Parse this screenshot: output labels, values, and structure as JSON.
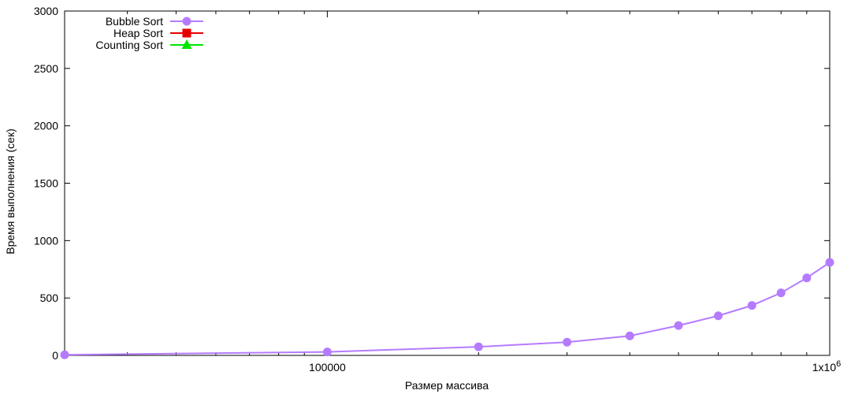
{
  "chart_data": {
    "type": "line",
    "xlabel": "Размер массива",
    "ylabel": "Время выполнения (сек)",
    "xscale": "log",
    "xlim": [
      30000,
      1000000
    ],
    "ylim": [
      0,
      3000
    ],
    "y_ticks": [
      0,
      500,
      1000,
      1500,
      2000,
      2500,
      3000
    ],
    "x_ticks": [
      {
        "value": 100000,
        "label": "100000",
        "sup": ""
      },
      {
        "value": 1000000,
        "label": "1x10",
        "sup": "6"
      }
    ],
    "legend_position": "top-left",
    "x": [
      30000,
      100000,
      200000,
      300000,
      400000,
      500000,
      600000,
      700000,
      800000,
      900000,
      1000000
    ],
    "series": [
      {
        "name": "Bubble Sort",
        "color": "#b57bff",
        "marker": "circle",
        "points": [
          [
            30000,
            5
          ],
          [
            100000,
            30
          ],
          [
            200000,
            75
          ],
          [
            300000,
            115
          ],
          [
            400000,
            170
          ],
          [
            500000,
            260
          ],
          [
            600000,
            345
          ],
          [
            700000,
            435
          ],
          [
            800000,
            545
          ],
          [
            900000,
            675
          ],
          [
            1000000,
            810
          ]
        ]
      },
      {
        "name": "Heap Sort",
        "color": "#e60000",
        "marker": "square",
        "points": []
      },
      {
        "name": "Counting Sort",
        "color": "#00e600",
        "marker": "triangle",
        "points": []
      }
    ]
  }
}
